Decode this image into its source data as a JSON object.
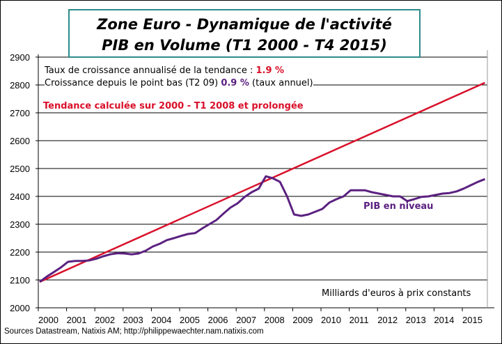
{
  "chart_data": {
    "type": "line",
    "title": [
      "Zone Euro - Dynamique de l'activité",
      "PIB en Volume (T1 2000 - T4 2015)"
    ],
    "xlabel": "",
    "ylabel": "",
    "ylim": [
      2000,
      2900
    ],
    "yticks": [
      2000,
      2100,
      2200,
      2300,
      2400,
      2500,
      2600,
      2700,
      2800,
      2900
    ],
    "xticks": [
      "2000",
      "2001",
      "2002",
      "2003",
      "2004",
      "2005",
      "2006",
      "2007",
      "2008",
      "2009",
      "2010",
      "2011",
      "2012",
      "2013",
      "2014",
      "2015"
    ],
    "x_start": "T1 2000",
    "x_end": "T4 2015",
    "frequency": "quarterly",
    "grid": true,
    "series": [
      {
        "name": "PIB en niveau",
        "color": "#5b2180",
        "values": [
          2093,
          2112,
          2128,
          2145,
          2165,
          2168,
          2168,
          2170,
          2176,
          2185,
          2192,
          2196,
          2195,
          2192,
          2195,
          2205,
          2220,
          2230,
          2243,
          2250,
          2258,
          2265,
          2268,
          2285,
          2300,
          2315,
          2338,
          2360,
          2375,
          2398,
          2415,
          2428,
          2472,
          2465,
          2452,
          2400,
          2335,
          2330,
          2335,
          2345,
          2355,
          2378,
          2390,
          2400,
          2422,
          2422,
          2422,
          2415,
          2410,
          2405,
          2400,
          2400,
          2383,
          2390,
          2398,
          2400,
          2405,
          2410,
          2412,
          2418,
          2428,
          2440,
          2452,
          2462
        ]
      },
      {
        "name": "Tendance calculée sur 2000 - T1 2008 et prolongée",
        "color": "#d9102a",
        "start": 2093,
        "end": 2808
      }
    ],
    "annotations": {
      "line1_prefix": "Taux de croissance annualisé de la tendance : ",
      "line1_value": "1.9 %",
      "line2_prefix": "Croissance depuis le point bas (T2 09) ",
      "line2_value": "0.9 %",
      "line2_suffix": " (taux annuel)",
      "trend_label": "Tendance calculée  sur 2000 - T1 2008 et prolongée",
      "series_label": "PIB en niveau",
      "units": "Milliards  d'euros à prix constants"
    }
  },
  "source": "Sources Datastream, Natixis AM;  http://philippewaechter.nam.natixis.com",
  "colors": {
    "title_border": "#2e8b8b",
    "trend": "#d9102a",
    "pib": "#5b2180"
  }
}
